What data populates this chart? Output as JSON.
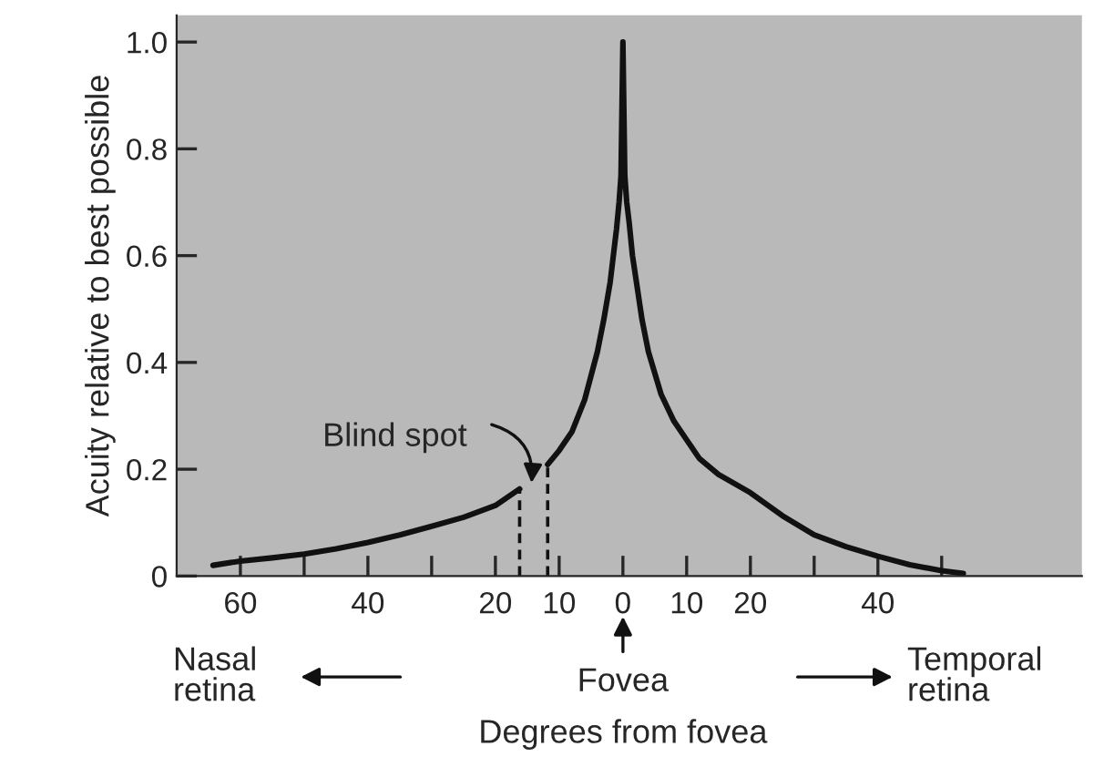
{
  "chart_data": {
    "type": "line",
    "ylabel": "Acuity relative to best possible",
    "xlabel": "Degrees from fovea",
    "xlim": [
      -70,
      72
    ],
    "xticks": [
      {
        "value": -60,
        "label": "60"
      },
      {
        "value": -50,
        "label": null
      },
      {
        "value": -40,
        "label": "40"
      },
      {
        "value": -30,
        "label": null
      },
      {
        "value": -20,
        "label": "20"
      },
      {
        "value": -10,
        "label": "10"
      },
      {
        "value": 0,
        "label": "0"
      },
      {
        "value": 10,
        "label": "10"
      },
      {
        "value": 20,
        "label": "20"
      },
      {
        "value": 30,
        "label": null
      },
      {
        "value": 40,
        "label": "40"
      },
      {
        "value": 50,
        "label": null
      }
    ],
    "ylim": [
      0,
      1.05
    ],
    "yticks": [
      {
        "value": 0,
        "label": "0"
      },
      {
        "value": 0.2,
        "label": "0.2"
      },
      {
        "value": 0.4,
        "label": "0.4"
      },
      {
        "value": 0.6,
        "label": "0.6"
      },
      {
        "value": 0.8,
        "label": "0.8"
      },
      {
        "value": 1.0,
        "label": "1.0"
      }
    ],
    "grid": false,
    "legend": false,
    "marker": "none",
    "series": [
      {
        "color": "#111111",
        "line_style": "solid",
        "x": [
          -64.3,
          -60,
          -55,
          -50,
          -45,
          -40,
          -35,
          -30,
          -25,
          -20,
          -16.2,
          -14,
          -11.8,
          -10,
          -8,
          -6,
          -4,
          -3,
          -2,
          -1.5,
          -1,
          -0.6,
          -0.3,
          0,
          0.3,
          0.6,
          1,
          1.5,
          2,
          3,
          4,
          6,
          8,
          10,
          12,
          15,
          20,
          25,
          30,
          35,
          40,
          45,
          50,
          53.4
        ],
        "values": [
          0.02,
          0.028,
          0.034,
          0.041,
          0.051,
          0.063,
          0.077,
          0.093,
          0.11,
          0.132,
          0.163,
          null,
          0.209,
          0.235,
          0.27,
          0.33,
          0.42,
          0.48,
          0.55,
          0.6,
          0.65,
          0.7,
          0.75,
          1.0,
          0.75,
          0.7,
          0.66,
          0.6,
          0.56,
          0.48,
          0.42,
          0.34,
          0.29,
          0.255,
          0.22,
          0.19,
          0.156,
          0.113,
          0.077,
          0.055,
          0.037,
          0.021,
          0.01,
          0.005
        ]
      },
      {
        "color": "#111111",
        "line_style": "dashed",
        "x": [
          -16.2,
          -16.2
        ],
        "values": [
          0,
          0.163
        ]
      },
      {
        "color": "#111111",
        "line_style": "dashed",
        "x": [
          -11.8,
          -11.8
        ],
        "values": [
          0,
          0.209
        ]
      }
    ],
    "annotations": [
      "Blind spot",
      "Nasal\nretina",
      "Fovea",
      "Temporal\nretina"
    ]
  }
}
